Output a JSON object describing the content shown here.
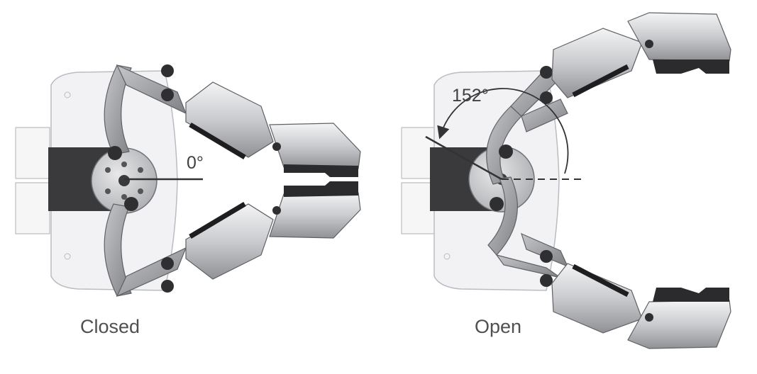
{
  "labels": {
    "closed": "Closed",
    "open": "Open",
    "closed_angle": "0°",
    "open_angle": "152°"
  },
  "colors": {
    "housing": "#f2f2f4",
    "housing_edge": "#b9bcc0",
    "dark_part": "#3a3a3c",
    "link": "#9a9ca0",
    "finger": "#cfd1d4",
    "finger_dark": "#2b2b2d",
    "text": "#505050"
  }
}
